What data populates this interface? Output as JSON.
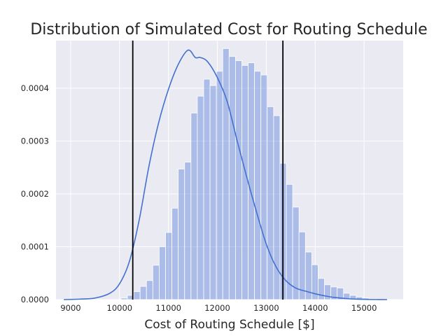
{
  "chart_data": {
    "type": "bar",
    "title": "Distribution of Simulated Cost for Routing Schedule",
    "xlabel": "Cost of Routing Schedule [$]",
    "ylabel": "",
    "xlim": [
      8700,
      15800
    ],
    "ylim": [
      0,
      0.00049
    ],
    "x_ticks": [
      "9000",
      "10000",
      "11000",
      "12000",
      "13000",
      "14000",
      "15000"
    ],
    "y_ticks": [
      "0.0000",
      "0.0001",
      "0.0002",
      "0.0003",
      "0.0004"
    ],
    "grid": true,
    "legend": "none",
    "colors": {
      "background": "#EAEAF2",
      "bar_fill": "#4C78D8",
      "bar_fill_opacity": 0.4,
      "kde_line": "#4470D0",
      "vline": "#000000",
      "grid": "#FFFFFF"
    },
    "bins": {
      "start": 8860,
      "width": 130,
      "density": [
        0,
        0,
        0,
        0,
        0,
        0,
        0,
        0,
        0,
        3e-06,
        8e-06,
        1.5e-05,
        2.5e-05,
        3.6e-05,
        6.5e-05,
        0.0001,
        0.000127,
        0.000173,
        0.000247,
        0.00026,
        0.000353,
        0.000385,
        0.000417,
        0.000405,
        0.000432,
        0.000475,
        0.00046,
        0.000452,
        0.000443,
        0.000448,
        0.000432,
        0.000425,
        0.000365,
        0.000348,
        0.000258,
        0.000218,
        0.000175,
        0.000128,
        9e-05,
        6.6e-05,
        4e-05,
        2.8e-05,
        2.4e-05,
        2.2e-05,
        1.2e-05,
        8e-06,
        5e-06,
        3e-06,
        1e-06,
        1e-06,
        5e-07,
        3e-07
      ]
    },
    "kde": {
      "x": [
        8860,
        9200,
        9500,
        9800,
        10000,
        10200,
        10400,
        10600,
        10800,
        11000,
        11200,
        11400,
        11550,
        11650,
        11800,
        12000,
        12200,
        12400,
        12600,
        12800,
        13000,
        13200,
        13400,
        13600,
        13800,
        14000,
        14200,
        14400,
        14700,
        15000,
        15300,
        15470
      ],
      "y": [
        0,
        1e-06,
        3e-06,
        1.2e-05,
        3e-05,
        7.2e-05,
        0.00015,
        0.000252,
        0.000335,
        0.000398,
        0.000445,
        0.000472,
        0.000458,
        0.000458,
        0.00045,
        0.00042,
        0.000375,
        0.000302,
        0.000232,
        0.000166,
        0.000105,
        6.2e-05,
        3.6e-05,
        2.2e-05,
        1.6e-05,
        1.1e-05,
        7e-06,
        4e-06,
        1.5e-06,
        5e-07,
        1e-07,
        0
      ]
    },
    "vlines": [
      10270,
      13340
    ]
  }
}
